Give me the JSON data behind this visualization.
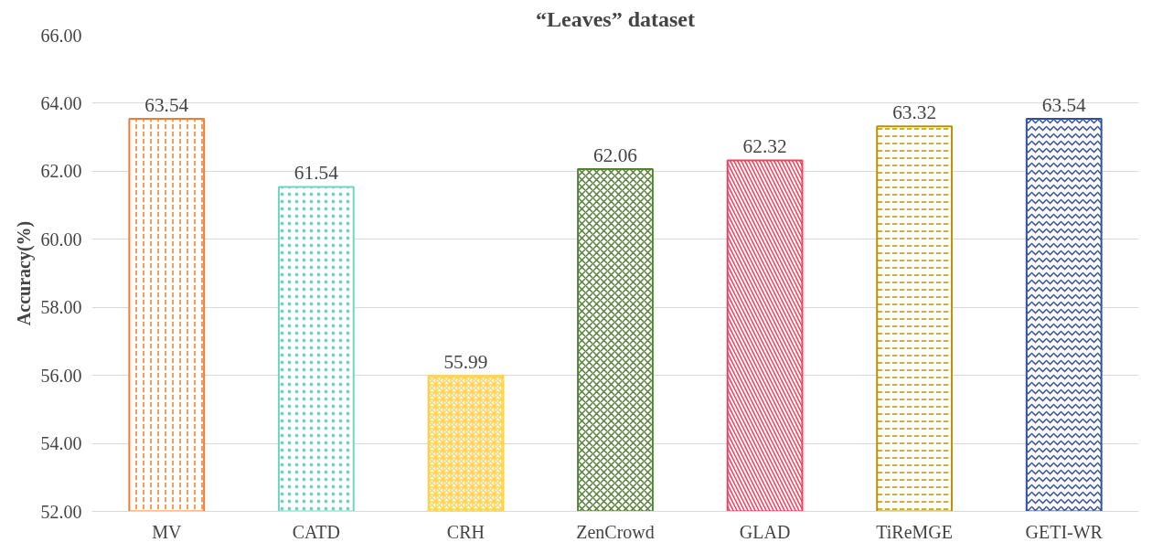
{
  "chart_data": {
    "type": "bar",
    "title": "“Leaves” dataset",
    "ylabel": "Accuracy(%)",
    "categories": [
      "MV",
      "CATD",
      "CRH",
      "ZenCrowd",
      "GLAD",
      "TiReMGE",
      "GETI-WR"
    ],
    "values": [
      63.54,
      61.54,
      55.99,
      62.06,
      62.32,
      63.32,
      63.54
    ],
    "colors": [
      "#ed7d31",
      "#6fd6c6",
      "#ffd34d",
      "#548235",
      "#f0405a",
      "#bf9000",
      "#2f4fa0"
    ],
    "ylim": [
      52,
      66
    ],
    "yticks": [
      {
        "value": 52,
        "label": "52.00"
      },
      {
        "value": 54,
        "label": "54.00"
      },
      {
        "value": 56,
        "label": "56.00"
      },
      {
        "value": 58,
        "label": "58.00"
      },
      {
        "value": 60,
        "label": "60.00"
      },
      {
        "value": 62,
        "label": "62.00"
      },
      {
        "value": 64,
        "label": "64.00"
      },
      {
        "value": 66,
        "label": "66.00"
      }
    ],
    "grid": "y",
    "data_labels": true
  }
}
